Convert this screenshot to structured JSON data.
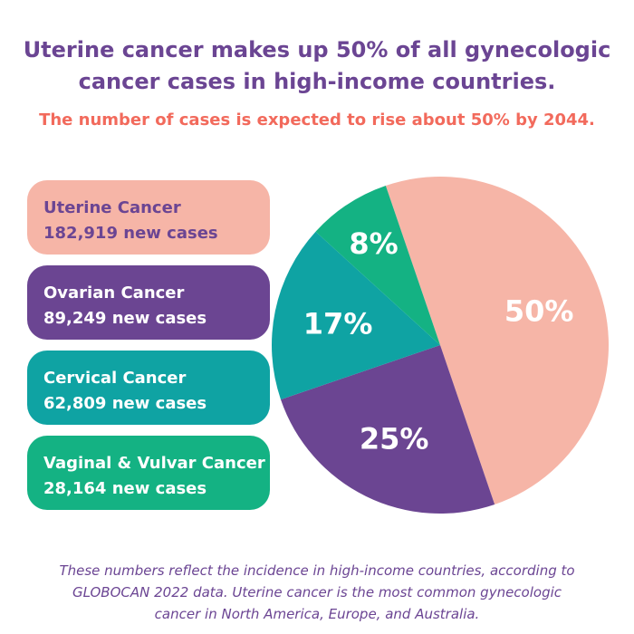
{
  "header": {
    "title_line1": "Uterine cancer makes up 50% of all gynecologic",
    "title_line2": "cancer cases in high-income countries.",
    "subtitle": "The number of cases is expected to rise about 50% by 2044."
  },
  "legend": [
    {
      "name": "Uterine Cancer",
      "cases": "182,919 new cases"
    },
    {
      "name": "Ovarian Cancer",
      "cases": "89,249 new cases"
    },
    {
      "name": "Cervical Cancer",
      "cases": "62,809 new cases"
    },
    {
      "name": "Vaginal & Vulvar Cancer",
      "cases": "28,164 new cases"
    }
  ],
  "colors": {
    "uterine": "#f6b5a7",
    "ovarian": "#6b4592",
    "cervical": "#0fa3a3",
    "vaginal_vulvar": "#14b283",
    "title": "#6b4593",
    "subtitle": "#f26a5c"
  },
  "chart_data": {
    "type": "pie",
    "categories": [
      "Uterine Cancer",
      "Ovarian Cancer",
      "Cervical Cancer",
      "Vaginal & Vulvar Cancer"
    ],
    "values": [
      50,
      25,
      17,
      8
    ],
    "labels": [
      "50%",
      "25%",
      "17%",
      "8%"
    ]
  },
  "footnote": {
    "line1": "These numbers reflect the incidence in high-income countries, according to",
    "line2": "GLOBOCAN 2022 data. Uterine cancer is the most common gynecologic",
    "line3": "cancer in North America, Europe, and Australia."
  }
}
